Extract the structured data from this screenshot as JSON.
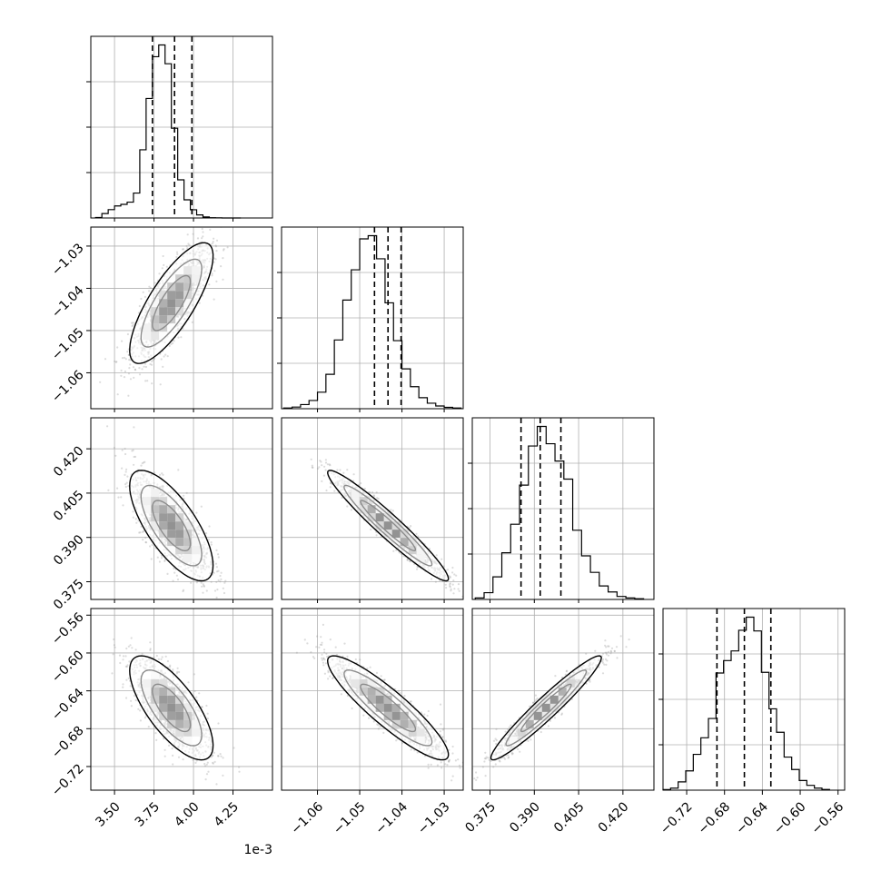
{
  "chart_data": {
    "type": "corner",
    "parameters": 4,
    "quantile_lines": [
      0.16,
      0.5,
      0.84
    ],
    "x_offset_text": "1e-3",
    "colors": {
      "lines": "#000000",
      "grid": "#b0b0b0",
      "scatter": "#9a9a9a"
    },
    "axes": [
      {
        "id": "p0",
        "range": [
          3.35,
          4.5
        ],
        "ticks": [
          3.5,
          3.75,
          4.0,
          4.25
        ],
        "tick_labels": [
          "3.50",
          "3.75",
          "4.00",
          "4.25"
        ],
        "quantiles": [
          3.74,
          3.88,
          3.99
        ]
      },
      {
        "id": "p1",
        "range": [
          -1.0685,
          -1.0255
        ],
        "ticks": [
          -1.06,
          -1.05,
          -1.04,
          -1.03
        ],
        "tick_labels": [
          "−1.06",
          "−1.05",
          "−1.04",
          "−1.03"
        ],
        "quantiles": [
          -1.0465,
          -1.0433,
          -1.0402
        ]
      },
      {
        "id": "p2",
        "range": [
          0.369,
          0.4305
        ],
        "ticks": [
          0.375,
          0.39,
          0.405,
          0.42
        ],
        "tick_labels": [
          "0.375",
          "0.390",
          "0.405",
          "0.420"
        ],
        "quantiles": [
          0.3855,
          0.392,
          0.399
        ]
      },
      {
        "id": "p3",
        "range": [
          -0.745,
          -0.553
        ],
        "ticks": [
          -0.72,
          -0.68,
          -0.64,
          -0.6,
          -0.56
        ],
        "tick_labels": [
          "−0.72",
          "−0.68",
          "−0.64",
          "−0.60",
          "−0.56"
        ],
        "quantiles": [
          -0.688,
          -0.659,
          -0.631
        ]
      }
    ],
    "histograms": [
      {
        "param": "p0",
        "bins": [
          3.38,
          3.42,
          3.46,
          3.5,
          3.54,
          3.58,
          3.62,
          3.66,
          3.7,
          3.74,
          3.78,
          3.82,
          3.86,
          3.9,
          3.94,
          3.98,
          4.02,
          4.06,
          4.1,
          4.14,
          4.18,
          4.22,
          4.26,
          4.3
        ],
        "counts": [
          3,
          30,
          57,
          82,
          93,
          108,
          170,
          465,
          815,
          1100,
          1180,
          1052,
          612,
          260,
          124,
          56,
          21,
          7,
          2,
          1,
          0,
          0,
          0
        ]
      },
      {
        "param": "p1",
        "bins": [
          -1.068,
          -1.066,
          -1.064,
          -1.062,
          -1.06,
          -1.058,
          -1.056,
          -1.054,
          -1.052,
          -1.05,
          -1.048,
          -1.046,
          -1.044,
          -1.042,
          -1.04,
          -1.038,
          -1.036,
          -1.034,
          -1.032,
          -1.03,
          -1.028,
          -1.026
        ],
        "counts": [
          5,
          12,
          30,
          60,
          120,
          250,
          500,
          790,
          1010,
          1235,
          1258,
          1090,
          770,
          495,
          290,
          160,
          80,
          40,
          20,
          10,
          5
        ]
      },
      {
        "param": "p2",
        "bins": [
          0.37,
          0.373,
          0.376,
          0.379,
          0.382,
          0.385,
          0.388,
          0.391,
          0.394,
          0.397,
          0.4,
          0.403,
          0.406,
          0.409,
          0.412,
          0.415,
          0.418,
          0.421,
          0.424,
          0.427
        ],
        "counts": [
          10,
          45,
          150,
          310,
          500,
          760,
          1020,
          1150,
          1035,
          920,
          800,
          460,
          290,
          180,
          90,
          50,
          20,
          10,
          5
        ]
      },
      {
        "param": "p3",
        "bins": [
          -0.745,
          -0.737,
          -0.729,
          -0.721,
          -0.713,
          -0.705,
          -0.697,
          -0.689,
          -0.681,
          -0.673,
          -0.665,
          -0.657,
          -0.649,
          -0.641,
          -0.633,
          -0.625,
          -0.617,
          -0.609,
          -0.601,
          -0.593,
          -0.585,
          -0.577,
          -0.569
        ],
        "counts": [
          4,
          15,
          60,
          140,
          260,
          380,
          520,
          850,
          940,
          1010,
          1160,
          1255,
          1155,
          855,
          590,
          420,
          240,
          150,
          70,
          35,
          15,
          5
        ]
      }
    ],
    "pairs": [
      {
        "x": "p0",
        "y": "p1",
        "correlation": 0.78,
        "mean": [
          3.86,
          -1.0435
        ],
        "std": [
          0.12,
          0.0065
        ],
        "curvature": -0.0035
      },
      {
        "x": "p0",
        "y": "p2",
        "correlation": -0.72,
        "mean": [
          3.86,
          0.394
        ],
        "std": [
          0.12,
          0.0085
        ],
        "curvature": 0.006
      },
      {
        "x": "p1",
        "y": "p2",
        "correlation": -0.96,
        "mean": [
          -1.0433,
          0.394
        ],
        "std": [
          0.0065,
          0.0085
        ],
        "curvature": 0.0
      },
      {
        "x": "p0",
        "y": "p3",
        "correlation": -0.72,
        "mean": [
          3.86,
          -0.658
        ],
        "std": [
          0.12,
          0.025
        ],
        "curvature": -0.015
      },
      {
        "x": "p1",
        "y": "p3",
        "correlation": -0.9,
        "mean": [
          -1.0433,
          -0.658
        ],
        "std": [
          0.0065,
          0.025
        ],
        "curvature": 0.0
      },
      {
        "x": "p2",
        "y": "p3",
        "correlation": 0.96,
        "mean": [
          0.394,
          -0.658
        ],
        "std": [
          0.0085,
          0.025
        ],
        "curvature": 0.0
      }
    ]
  }
}
